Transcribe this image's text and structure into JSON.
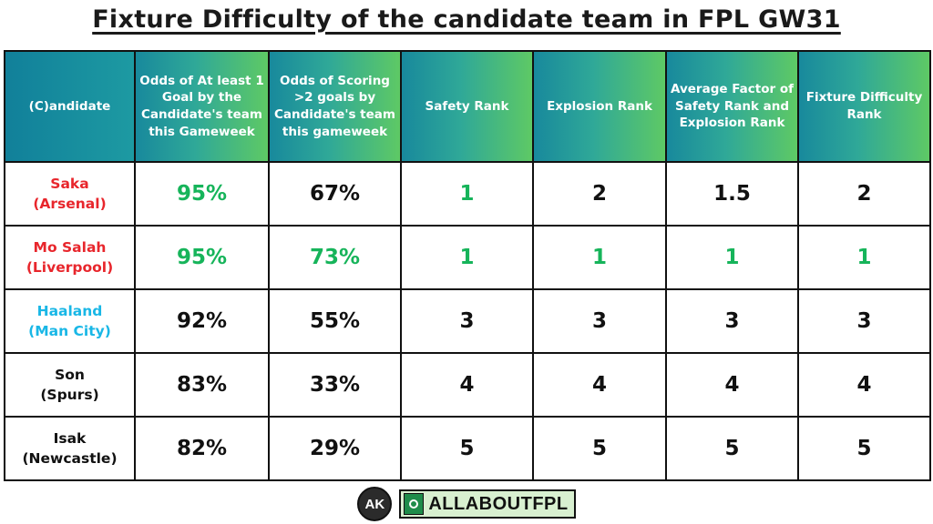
{
  "title": "Fixture Difficulty of the candidate team in FPL GW31",
  "colors": {
    "header_gradient_start": "#18899c",
    "header_gradient_end": "#5ec965",
    "red_team": "#e8262c",
    "cyan_team": "#19b7e6",
    "highlight_green": "#16b45a"
  },
  "table": {
    "headers": [
      "(C)andidate",
      "Odds of At least 1 Goal by the Candidate's team this Gameweek",
      "Odds of Scoring >2 goals by Candidate's team this gameweek",
      "Safety Rank",
      "Explosion Rank",
      "Average Factor of Safety Rank and Explosion Rank",
      "Fixture Difficulty Rank"
    ],
    "rows": [
      {
        "name": "Saka",
        "team": "(Arsenal)",
        "name_color": "red",
        "values": [
          "95%",
          "67%",
          "1",
          "2",
          "1.5",
          "2"
        ],
        "highlight": [
          true,
          false,
          true,
          false,
          false,
          false
        ]
      },
      {
        "name": "Mo Salah",
        "team": "(Liverpool)",
        "name_color": "red",
        "values": [
          "95%",
          "73%",
          "1",
          "1",
          "1",
          "1"
        ],
        "highlight": [
          true,
          true,
          true,
          true,
          true,
          true
        ]
      },
      {
        "name": "Haaland",
        "team": "(Man City)",
        "name_color": "cyan",
        "values": [
          "92%",
          "55%",
          "3",
          "3",
          "3",
          "3"
        ],
        "highlight": [
          false,
          false,
          false,
          false,
          false,
          false
        ]
      },
      {
        "name": "Son",
        "team": "(Spurs)",
        "name_color": "black",
        "values": [
          "83%",
          "33%",
          "4",
          "4",
          "4",
          "4"
        ],
        "highlight": [
          false,
          false,
          false,
          false,
          false,
          false
        ]
      },
      {
        "name": "Isak",
        "team": "(Newcastle)",
        "name_color": "black",
        "values": [
          "82%",
          "29%",
          "5",
          "5",
          "5",
          "5"
        ],
        "highlight": [
          false,
          false,
          false,
          false,
          false,
          false
        ]
      }
    ]
  },
  "footer": {
    "logo_text": "AK",
    "brand": "ALLABOUTFPL"
  }
}
